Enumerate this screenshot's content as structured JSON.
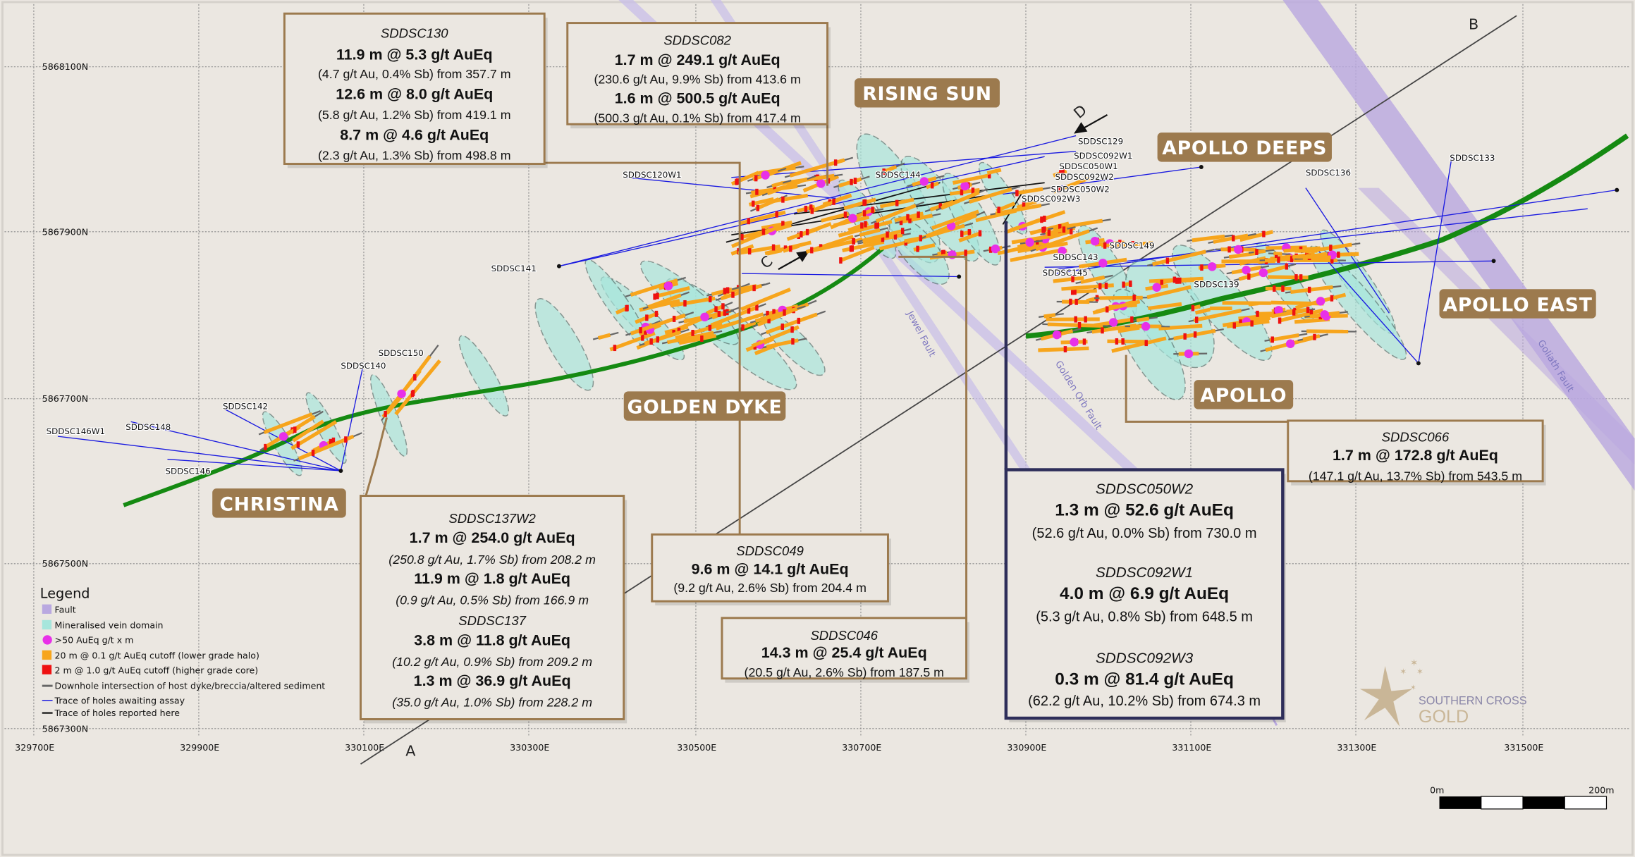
{
  "map": {
    "eastings": [
      "329700E",
      "329900E",
      "330100E",
      "330300E",
      "330500E",
      "330700E",
      "330900E",
      "331100E",
      "331300E",
      "331500E"
    ],
    "northings": [
      "5868100N",
      "5867900N",
      "5867700N",
      "5867500N",
      "5867300N"
    ],
    "area_labels": [
      "RISING SUN",
      "APOLLO DEEPS",
      "APOLLO EAST",
      "APOLLO",
      "GOLDEN DYKE",
      "CHRISTINA"
    ],
    "hole_labels": [
      "SDDSC129",
      "SDDSC092W1",
      "SDDSC050W1",
      "SDDSC092W2",
      "SDDSC050W2",
      "SDDSC092W3",
      "SDDSC144",
      "SDDSC120W1",
      "SDDSC141",
      "SDDSC150",
      "SDDSC140",
      "SDDSC142",
      "SDDSC148",
      "SDDSC146W1",
      "SDDSC146",
      "SDDSC149",
      "SDDSC143",
      "SDDSC145",
      "SDDSC139",
      "SDDSC136",
      "SDDSC133"
    ],
    "fault_labels": [
      "Jewel Fault",
      "Golden Orb Fault",
      "Goliath Fault"
    ],
    "section_letters": [
      "A",
      "B",
      "C",
      "D"
    ]
  },
  "callouts": [
    {
      "lines": [
        "SDDSC130",
        "11.9 m @ 5.3 g/t AuEq",
        "(4.7 g/t Au, 0.4% Sb) from 357.7 m",
        "12.6 m @ 8.0 g/t AuEq",
        "(5.8 g/t Au, 1.2% Sb) from 419.1 m",
        "8.7 m @ 4.6 g/t AuEq",
        "(2.3 g/t Au, 1.3% Sb) from 498.8 m"
      ]
    },
    {
      "lines": [
        "SDDSC082",
        "1.7 m @ 249.1 g/t AuEq",
        "(230.6 g/t Au, 9.9% Sb) from 413.6 m",
        "1.6 m @ 500.5 g/t AuEq",
        "(500.3 g/t Au, 0.1% Sb) from 417.4 m"
      ]
    },
    {
      "lines": [
        "SDDSC137W2",
        "1.7 m @ 254.0 g/t AuEq",
        "(250.8 g/t Au, 1.7% Sb) from 208.2 m",
        "11.9 m @ 1.8 g/t AuEq",
        "(0.9 g/t Au, 0.5% Sb) from 166.9 m",
        "SDDSC137",
        "3.8 m @ 11.8 g/t AuEq",
        "(10.2 g/t Au, 0.9% Sb) from 209.2 m",
        "1.3 m @ 36.9 g/t AuEq",
        "(35.0 g/t Au, 1.0% Sb) from 228.2 m"
      ]
    },
    {
      "lines": [
        "SDDSC049",
        "9.6 m @ 14.1 g/t AuEq",
        "(9.2 g/t Au, 2.6% Sb) from 204.4 m"
      ]
    },
    {
      "lines": [
        "SDDSC046",
        "14.3 m @ 25.4 g/t AuEq",
        "(20.5 g/t Au, 2.6% Sb) from 187.5 m"
      ]
    },
    {
      "lines": [
        "SDDSC066",
        "1.7 m @ 172.8 g/t AuEq",
        "(147.1 g/t Au, 13.7% Sb) from 543.5 m"
      ]
    },
    {
      "lines": [
        "SDDSC050W2",
        "1.3 m @ 52.6 g/t AuEq",
        "(52.6 g/t Au, 0.0% Sb) from 730.0 m",
        "SDDSC092W1",
        "4.0 m @ 6.9 g/t AuEq",
        "(5.3 g/t Au, 0.8% Sb) from 648.5 m",
        "SDDSC092W3",
        "0.3 m @ 81.4 g/t AuEq",
        "(62.2 g/t Au, 10.2% Sb) from 674.3 m"
      ]
    }
  ],
  "legend": {
    "title": "Legend",
    "items": [
      "Fault",
      "Mineralised vein domain",
      ">50 AuEq g/t x m",
      "20 m @ 0.1 g/t AuEq cutoff (lower grade halo)",
      "2 m @ 1.0 g/t AuEq cutoff (higher grade core)",
      "Downhole intersection of host dyke/breccia/altered sediment",
      "Trace of holes awaiting assay",
      "Trace of holes reported here"
    ]
  },
  "scale_bar": {
    "start": "0m",
    "end": "200m"
  },
  "logo": {
    "line1": "SOUTHERN CROSS",
    "line2": "GOLD"
  },
  "colors": {
    "fault": "#b9a8e0",
    "vein": "#a6e6dc",
    "high_grade": "#e830e8",
    "halo": "#f7a51c",
    "core": "#ee1111",
    "dyke": "#158a12",
    "awaiting": "#1a1ae0",
    "reported": "#111111",
    "label_bg": "#9c7a4e"
  }
}
